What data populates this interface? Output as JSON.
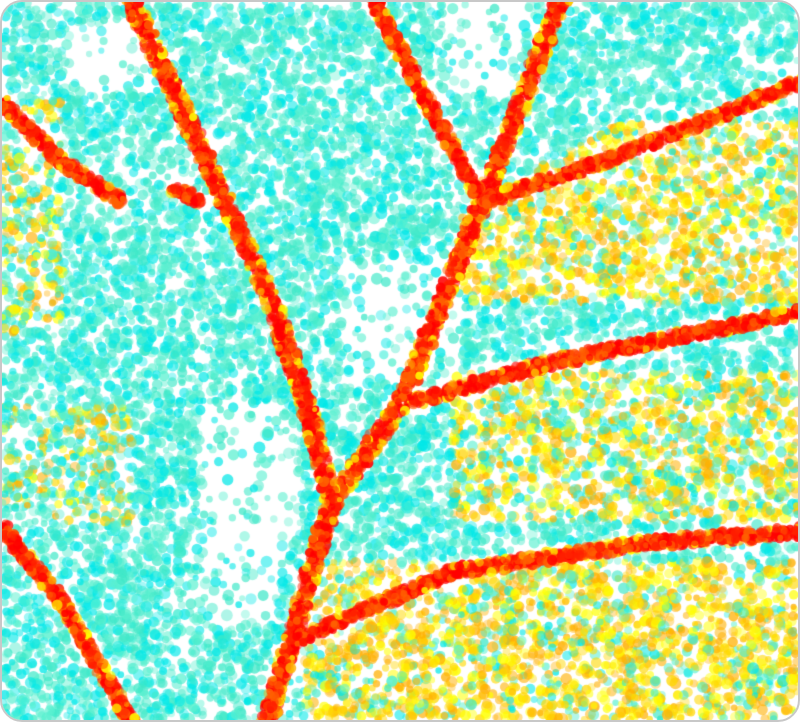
{
  "artwork": {
    "subject": "leaf-veins-pointillism",
    "palette": {
      "background": "#ffffff",
      "leaf_tissue": [
        "#3ee8c8",
        "#00e8e8",
        "#5af0d0"
      ],
      "warm_tissue": [
        "#ffff00",
        "#ffd800",
        "#ffb000"
      ],
      "vein": [
        "#ff2000",
        "#ff0000",
        "#ff6000"
      ],
      "frame_border": "#c8c8c8"
    }
  }
}
